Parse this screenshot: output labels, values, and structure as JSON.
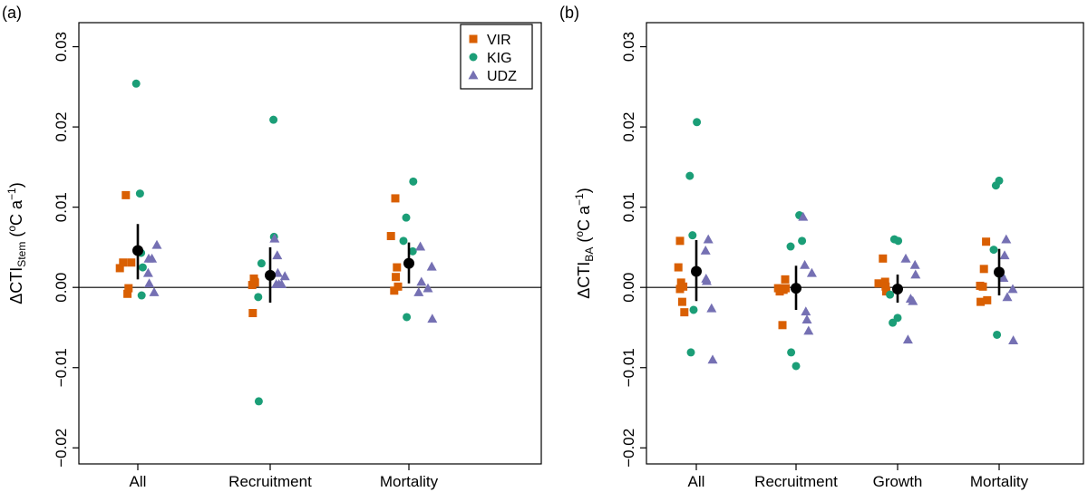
{
  "colors": {
    "VIR": "#d95f02",
    "KIG": "#1b9e77",
    "UDZ": "#7570b3",
    "mean": "#000000"
  },
  "legend": {
    "entries": [
      {
        "name": "VIR",
        "shape": "square"
      },
      {
        "name": "KIG",
        "shape": "circle"
      },
      {
        "name": "UDZ",
        "shape": "triangle"
      }
    ]
  },
  "chart_data": [
    {
      "panel_label": "(a)",
      "type": "scatter",
      "ylabel": {
        "prefix": "ΔCTI",
        "sub": "Stem",
        "units_open": " (",
        "degree": "o",
        "units_mid": "C a",
        "exp": "−1",
        "units_close": ")"
      },
      "ylim": [
        -0.022,
        0.033
      ],
      "yticks": [
        -0.02,
        -0.01,
        0.0,
        0.01,
        0.02,
        0.03
      ],
      "ytick_labels": [
        "−0.02",
        "−0.01",
        "0.00",
        "0.01",
        "0.02",
        "0.03"
      ],
      "hline": 0,
      "categories": [
        "All",
        "Recruitment",
        "Mortality"
      ],
      "points": {
        "All": {
          "VIR": [
            {
              "dx": -0.33,
              "y": 0.0024
            },
            {
              "dx": -0.27,
              "y": 0.0031
            },
            {
              "dx": -0.22,
              "y": 0.0115
            },
            {
              "dx": -0.19,
              "y": -0.0008
            },
            {
              "dx": -0.17,
              "y": -0.0001
            },
            {
              "dx": -0.12,
              "y": 0.0031
            }
          ],
          "KIG": [
            {
              "dx": -0.03,
              "y": 0.0254
            },
            {
              "dx": 0.04,
              "y": 0.0117
            },
            {
              "dx": 0.06,
              "y": 0.0043
            },
            {
              "dx": 0.07,
              "y": -0.001
            },
            {
              "dx": 0.09,
              "y": 0.0025
            }
          ],
          "UDZ": [
            {
              "dx": 0.19,
              "y": 0.0018
            },
            {
              "dx": 0.2,
              "y": 0.0036
            },
            {
              "dx": 0.21,
              "y": 0.0005
            },
            {
              "dx": 0.26,
              "y": 0.0036
            },
            {
              "dx": 0.3,
              "y": -0.0006
            },
            {
              "dx": 0.35,
              "y": 0.0053
            }
          ],
          "mean": {
            "y": 0.0046,
            "lo": 0.001,
            "hi": 0.0079
          }
        },
        "Recruitment": {
          "VIR": [
            {
              "dx": -0.33,
              "y": 0.0003
            },
            {
              "dx": -0.32,
              "y": -0.0032
            },
            {
              "dx": -0.3,
              "y": 0.0011
            },
            {
              "dx": -0.29,
              "y": 0.0007
            },
            {
              "dx": -0.28,
              "y": 0.0006
            }
          ],
          "KIG": [
            {
              "dx": -0.22,
              "y": -0.0012
            },
            {
              "dx": -0.21,
              "y": -0.0142
            },
            {
              "dx": -0.16,
              "y": 0.003
            },
            {
              "dx": 0.06,
              "y": 0.0209
            },
            {
              "dx": 0.07,
              "y": 0.0063
            }
          ],
          "UDZ": [
            {
              "dx": 0.08,
              "y": 0.0061
            },
            {
              "dx": 0.11,
              "y": 0.0004
            },
            {
              "dx": 0.13,
              "y": 0.004
            },
            {
              "dx": 0.14,
              "y": 0.0018
            },
            {
              "dx": 0.16,
              "y": 0.0004
            },
            {
              "dx": 0.21,
              "y": 0.0004
            },
            {
              "dx": 0.27,
              "y": 0.0014
            }
          ],
          "mean": {
            "y": 0.0015,
            "lo": -0.0019,
            "hi": 0.005
          }
        },
        "Mortality": {
          "VIR": [
            {
              "dx": -0.33,
              "y": 0.0064
            },
            {
              "dx": -0.27,
              "y": -0.0004
            },
            {
              "dx": -0.25,
              "y": 0.0111
            },
            {
              "dx": -0.24,
              "y": 0.0013
            },
            {
              "dx": -0.22,
              "y": 0.0025
            },
            {
              "dx": -0.2,
              "y": 0.0001
            }
          ],
          "KIG": [
            {
              "dx": -0.1,
              "y": 0.0058
            },
            {
              "dx": -0.05,
              "y": 0.0087
            },
            {
              "dx": -0.04,
              "y": -0.0037
            },
            {
              "dx": 0.07,
              "y": 0.0045
            },
            {
              "dx": 0.08,
              "y": 0.0132
            }
          ],
          "UDZ": [
            {
              "dx": 0.18,
              "y": -0.0006
            },
            {
              "dx": 0.21,
              "y": 0.0051
            },
            {
              "dx": 0.23,
              "y": 0.0007
            },
            {
              "dx": 0.35,
              "y": -0.0001
            },
            {
              "dx": 0.42,
              "y": 0.0026
            },
            {
              "dx": 0.43,
              "y": -0.0039
            }
          ],
          "mean": {
            "y": 0.003,
            "lo": 0.0005,
            "hi": 0.0056
          }
        }
      }
    },
    {
      "panel_label": "(b)",
      "type": "scatter",
      "ylabel": {
        "prefix": "ΔCTI",
        "sub": "BA",
        "units_open": " (",
        "degree": "o",
        "units_mid": "C a",
        "exp": "−1",
        "units_close": ")"
      },
      "ylim": [
        -0.022,
        0.033
      ],
      "yticks": [
        -0.02,
        -0.01,
        0.0,
        0.01,
        0.02,
        0.03
      ],
      "ytick_labels": [
        "−0.02",
        "−0.01",
        "0.00",
        "0.01",
        "0.02",
        "0.03"
      ],
      "hline": 0,
      "categories": [
        "All",
        "Recruitment",
        "Growth",
        "Mortality"
      ],
      "points": {
        "All": {
          "VIR": [
            {
              "dx": -0.33,
              "y": 0.0025
            },
            {
              "dx": -0.3,
              "y": -0.0002
            },
            {
              "dx": -0.3,
              "y": 0.0058
            },
            {
              "dx": -0.28,
              "y": 0.0006
            },
            {
              "dx": -0.26,
              "y": -0.0018
            },
            {
              "dx": -0.24,
              "y": 0.0001
            },
            {
              "dx": -0.22,
              "y": -0.0031
            }
          ],
          "KIG": [
            {
              "dx": -0.12,
              "y": 0.0139
            },
            {
              "dx": -0.1,
              "y": -0.0081
            },
            {
              "dx": -0.07,
              "y": 0.0065
            },
            {
              "dx": -0.05,
              "y": -0.0028
            },
            {
              "dx": 0.01,
              "y": 0.0206
            }
          ],
          "UDZ": [
            {
              "dx": 0.17,
              "y": 0.0046
            },
            {
              "dx": 0.18,
              "y": 0.0011
            },
            {
              "dx": 0.19,
              "y": 0.0008
            },
            {
              "dx": 0.22,
              "y": 0.006
            },
            {
              "dx": 0.28,
              "y": -0.0026
            },
            {
              "dx": 0.3,
              "y": -0.009
            }
          ],
          "mean": {
            "y": 0.002,
            "lo": -0.0017,
            "hi": 0.0059
          }
        },
        "Recruitment": {
          "VIR": [
            {
              "dx": -0.33,
              "y": -0.0001
            },
            {
              "dx": -0.3,
              "y": -0.0005
            },
            {
              "dx": -0.25,
              "y": -0.0047
            },
            {
              "dx": -0.23,
              "y": -0.0003
            },
            {
              "dx": -0.2,
              "y": 0.001
            },
            {
              "dx": -0.19,
              "y": -0.0001
            }
          ],
          "KIG": [
            {
              "dx": -0.1,
              "y": 0.0051
            },
            {
              "dx": -0.09,
              "y": -0.0081
            },
            {
              "dx": 0.0,
              "y": -0.0098
            },
            {
              "dx": 0.06,
              "y": 0.009
            },
            {
              "dx": 0.11,
              "y": 0.0058
            }
          ],
          "UDZ": [
            {
              "dx": 0.13,
              "y": 0.0088
            },
            {
              "dx": 0.16,
              "y": 0.0028
            },
            {
              "dx": 0.18,
              "y": -0.003
            },
            {
              "dx": 0.2,
              "y": -0.004
            },
            {
              "dx": 0.23,
              "y": -0.0054
            },
            {
              "dx": 0.29,
              "y": 0.0018
            }
          ],
          "mean": {
            "y": -0.0001,
            "lo": -0.0028,
            "hi": 0.0027
          }
        },
        "Growth": {
          "VIR": [
            {
              "dx": -0.35,
              "y": 0.0005
            },
            {
              "dx": -0.27,
              "y": 0.0036
            },
            {
              "dx": -0.23,
              "y": 0.0007
            },
            {
              "dx": -0.22,
              "y": 0.0001
            },
            {
              "dx": -0.21,
              "y": -0.0005
            }
          ],
          "KIG": [
            {
              "dx": -0.14,
              "y": -0.0009
            },
            {
              "dx": -0.09,
              "y": -0.0044
            },
            {
              "dx": -0.06,
              "y": 0.006
            },
            {
              "dx": 0.0,
              "y": -0.0038
            },
            {
              "dx": 0.01,
              "y": 0.0058
            }
          ],
          "UDZ": [
            {
              "dx": 0.15,
              "y": 0.0036
            },
            {
              "dx": 0.19,
              "y": -0.0065
            },
            {
              "dx": 0.24,
              "y": -0.0014
            },
            {
              "dx": 0.28,
              "y": -0.0017
            },
            {
              "dx": 0.32,
              "y": 0.0028
            },
            {
              "dx": 0.33,
              "y": 0.0016
            }
          ],
          "mean": {
            "y": -0.0002,
            "lo": -0.0019,
            "hi": 0.0016
          }
        },
        "Mortality": {
          "VIR": [
            {
              "dx": -0.35,
              "y": 0.0002
            },
            {
              "dx": -0.34,
              "y": -0.0018
            },
            {
              "dx": -0.3,
              "y": 0.0001
            },
            {
              "dx": -0.28,
              "y": 0.0023
            },
            {
              "dx": -0.24,
              "y": 0.0057
            },
            {
              "dx": -0.22,
              "y": -0.0016
            }
          ],
          "KIG": [
            {
              "dx": -0.1,
              "y": 0.0047
            },
            {
              "dx": -0.06,
              "y": 0.0127
            },
            {
              "dx": -0.04,
              "y": -0.0059
            },
            {
              "dx": 0.0,
              "y": 0.0133
            },
            {
              "dx": 0.05,
              "y": 0.0012
            }
          ],
          "UDZ": [
            {
              "dx": 0.08,
              "y": 0.0012
            },
            {
              "dx": 0.1,
              "y": 0.004
            },
            {
              "dx": 0.13,
              "y": 0.006
            },
            {
              "dx": 0.15,
              "y": -0.0012
            },
            {
              "dx": 0.25,
              "y": -0.0002
            },
            {
              "dx": 0.26,
              "y": -0.0066
            }
          ],
          "mean": {
            "y": 0.0019,
            "lo": -0.001,
            "hi": 0.0048
          }
        }
      }
    }
  ]
}
